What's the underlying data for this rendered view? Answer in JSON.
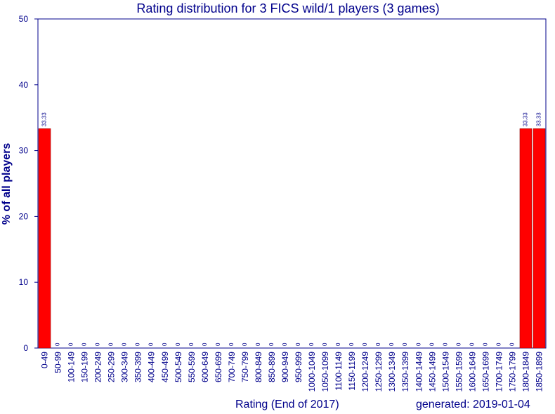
{
  "header": {
    "title": "Rating distribution for 3 FICS wild/1 players (3 games)",
    "generated": "generated: 2019-01-04"
  },
  "chart_data": {
    "type": "bar",
    "title": "Rating distribution for 3 FICS wild/1 players (3 games)",
    "xlabel": "Rating (End of 2017)",
    "ylabel": "% of all players",
    "ylim": [
      0,
      50
    ],
    "yticks": [
      0,
      10,
      20,
      30,
      40,
      50
    ],
    "grid": false,
    "bar_color": "#ff0000",
    "axis_color": "#00008b",
    "categories": [
      "0-49",
      "50-99",
      "100-149",
      "150-199",
      "200-249",
      "250-299",
      "300-349",
      "350-399",
      "400-449",
      "450-499",
      "500-549",
      "550-599",
      "600-649",
      "650-699",
      "700-749",
      "750-799",
      "800-849",
      "850-899",
      "900-949",
      "950-999",
      "1000-1049",
      "1050-1099",
      "1100-1149",
      "1150-1199",
      "1200-1249",
      "1250-1299",
      "1300-1349",
      "1350-1399",
      "1400-1449",
      "1450-1499",
      "1500-1549",
      "1550-1599",
      "1600-1649",
      "1650-1699",
      "1700-1749",
      "1750-1799",
      "1800-1849",
      "1850-1899"
    ],
    "values": [
      33.33,
      0,
      0,
      0,
      0,
      0,
      0,
      0,
      0,
      0,
      0,
      0,
      0,
      0,
      0,
      0,
      0,
      0,
      0,
      0,
      0,
      0,
      0,
      0,
      0,
      0,
      0,
      0,
      0,
      0,
      0,
      0,
      0,
      0,
      0,
      0,
      33.33,
      33.33
    ],
    "labels": [
      "33.33",
      "0",
      "0",
      "0",
      "0",
      "0",
      "0",
      "0",
      "0",
      "0",
      "0",
      "0",
      "0",
      "0",
      "0",
      "0",
      "0",
      "0",
      "0",
      "0",
      "0",
      "0",
      "0",
      "0",
      "0",
      "0",
      "0",
      "0",
      "0",
      "0",
      "0",
      "0",
      "0",
      "0",
      "0",
      "0",
      "33.33",
      "33.33"
    ]
  }
}
